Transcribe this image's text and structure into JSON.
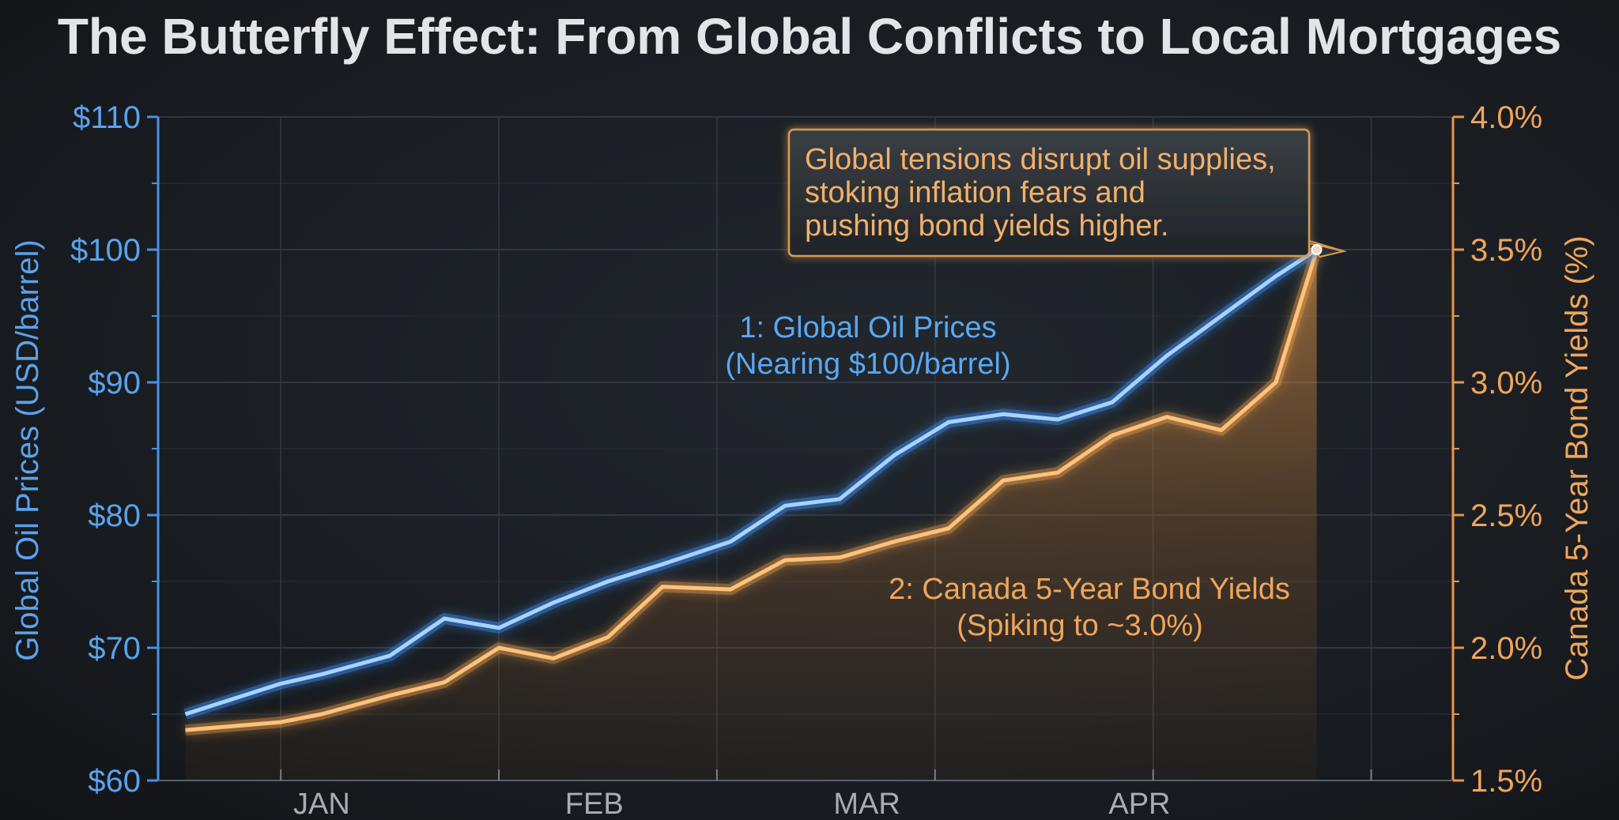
{
  "chart_data": {
    "type": "line",
    "title": "The Butterfly Effect: From Global Conflicts to Local Mortgages",
    "x_labels": [
      "JAN",
      "FEB",
      "MAR",
      "APR"
    ],
    "ylabel_left": "Global Oil Prices (USD/barrel)",
    "ylabel_right": "Canada 5-Year Bond Yields (%)",
    "ylim_left": [
      60,
      110
    ],
    "ylim_right": [
      1.5,
      4.0
    ],
    "yticks_left": [
      "$60",
      "$70",
      "$80",
      "$90",
      "$100",
      "$110"
    ],
    "yticks_right": [
      "1.5%",
      "2.0%",
      "2.5%",
      "3.0%",
      "3.5%",
      "4.0%"
    ],
    "grid": true,
    "x_positions": [
      0,
      0.7,
      1.0,
      1.5,
      1.9,
      2.3,
      2.7,
      3.1,
      3.5,
      4.0,
      4.4,
      4.8,
      5.2,
      5.6,
      6.0,
      6.4,
      6.8,
      7.2,
      7.6,
      8.0,
      8.3
    ],
    "month_positions": [
      1.0,
      3.0,
      5.0,
      7.0
    ],
    "x_range": [
      -0.2,
      9.3
    ],
    "series": [
      {
        "name": "1: Global Oil Prices",
        "axis": "left",
        "color": "#4d9bf5",
        "values": [
          65.0,
          67.3,
          68.0,
          69.4,
          72.2,
          71.5,
          73.4,
          75.0,
          76.3,
          78.0,
          80.7,
          81.2,
          84.5,
          87.0,
          87.6,
          87.2,
          88.5,
          92.0,
          95.0,
          98.0,
          100.0
        ]
      },
      {
        "name": "2: Canada 5-Year Bond Yields",
        "axis": "right",
        "color": "#f2a24e",
        "values": [
          1.69,
          1.72,
          1.75,
          1.82,
          1.87,
          2.0,
          1.96,
          2.04,
          2.23,
          2.22,
          2.33,
          2.34,
          2.4,
          2.45,
          2.63,
          2.66,
          2.8,
          2.87,
          2.82,
          3.0,
          3.5
        ]
      }
    ],
    "annotations": {
      "oil_label": [
        "1: Global Oil Prices",
        "(Nearing $100/barrel)"
      ],
      "bond_label": [
        "2: Canada 5-Year Bond Yields",
        "(Spiking to ~3.0%)"
      ],
      "callout": [
        "Global tensions disrupt oil supplies,",
        "stoking inflation fears and",
        "pushing bond yields higher."
      ]
    }
  }
}
